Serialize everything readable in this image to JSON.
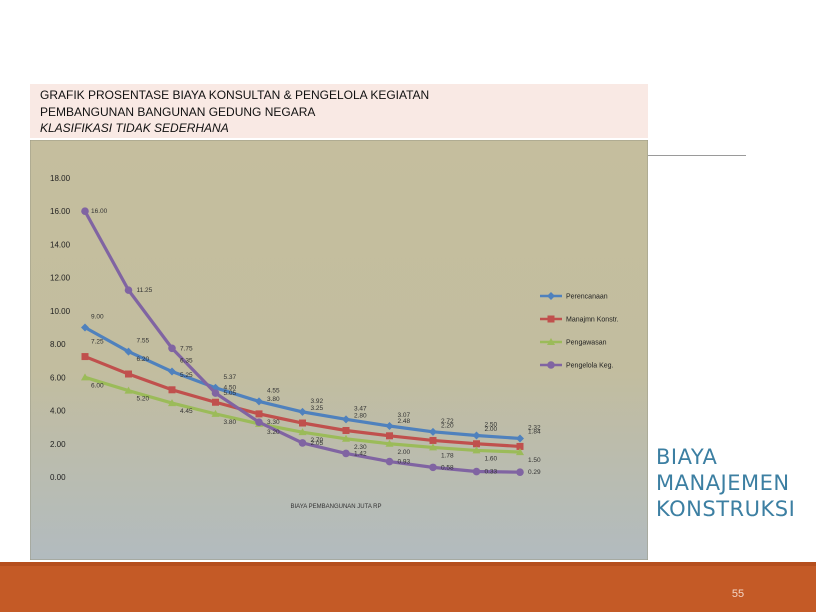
{
  "chart_title_lines": [
    "GRAFIK PROSENTASE BIAYA KONSULTAN & PENGELOLA KEGIATAN",
    "PEMBANGUNAN BANGUNAN GEDUNG NEGARA",
    "KLASIFIKASI TIDAK SEDERHANA"
  ],
  "side_title_lines": [
    "BIAYA",
    "MANAJEMEN",
    "KONSTRUKSI"
  ],
  "page_number": "55",
  "colors": {
    "plot_background": "#c5be9e",
    "plot_background_bottom": "#b2bbbf",
    "footer": "#c45a26",
    "side_title": "#3c7fa2"
  },
  "chart_data": {
    "type": "line",
    "xlabel": "BIAYA PEMBANGUNAN JUTA RP",
    "ylabel": "",
    "ylim": [
      0,
      18
    ],
    "yticks": [
      "0.00",
      "2.00",
      "4.00",
      "6.00",
      "8.00",
      "10.00",
      "12.00",
      "14.00",
      "16.00",
      "18.00"
    ],
    "grid": false,
    "legend_position": "right",
    "x_points": 11,
    "series": [
      {
        "name": "Perencanaan",
        "color": "#4f81bd",
        "marker": "diamond",
        "values": [
          9.0,
          7.55,
          6.35,
          5.37,
          4.55,
          3.92,
          3.47,
          3.07,
          2.72,
          2.5,
          2.32
        ],
        "labels": [
          "9.00",
          "7.55",
          "6.35",
          "5.37",
          "4.55",
          "3.92",
          "3.47",
          "3.07",
          "2.72",
          "2.50",
          "2.32"
        ]
      },
      {
        "name": "Manajmn Konstr.",
        "color": "#c0504d",
        "marker": "square",
        "values": [
          7.25,
          6.2,
          5.25,
          4.5,
          3.8,
          3.25,
          2.8,
          2.48,
          2.2,
          2.0,
          1.84
        ],
        "labels": [
          "7.25",
          "6.20",
          "5.25",
          "4.50",
          "3.80",
          "3.25",
          "2.80",
          "2.48",
          "2.20",
          "2.00",
          "1.84"
        ]
      },
      {
        "name": "Pengawasan",
        "color": "#9bbb59",
        "marker": "triangle",
        "values": [
          6.0,
          5.2,
          4.45,
          3.8,
          3.2,
          2.7,
          2.3,
          2.0,
          1.78,
          1.6,
          1.5
        ],
        "labels": [
          "6.00",
          "5.20",
          "4.45",
          "3.80",
          "3.20",
          "2.70",
          "2.30",
          "2.00",
          "1.78",
          "1.60",
          "1.50"
        ]
      },
      {
        "name": "Pengelola Keg.",
        "color": "#8064a2",
        "marker": "circle",
        "values": [
          16.0,
          11.25,
          7.75,
          5.05,
          3.3,
          2.05,
          1.42,
          0.93,
          0.58,
          0.33,
          0.29
        ],
        "labels": [
          "16.00",
          "11.25",
          "7.75",
          "5.05",
          "3.30",
          "2.05",
          "1.42",
          "0.93",
          "0.58",
          "0.33",
          "0.29"
        ]
      }
    ]
  }
}
